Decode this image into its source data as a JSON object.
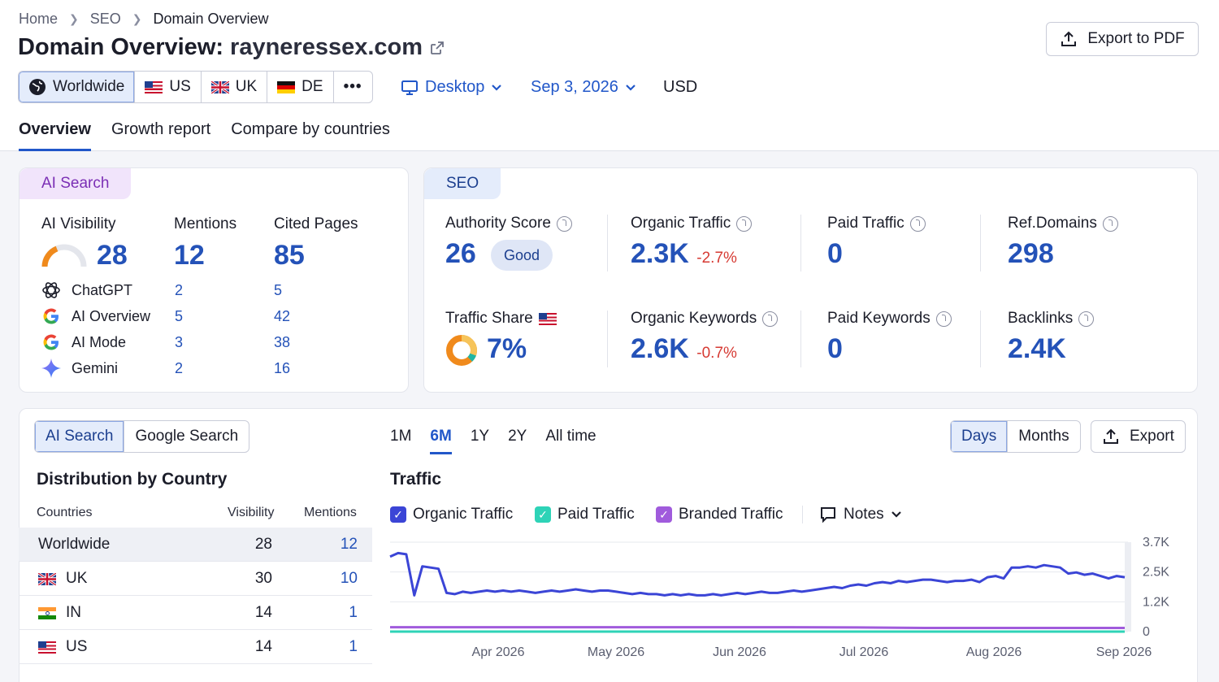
{
  "breadcrumb": {
    "home": "Home",
    "seo": "SEO",
    "current": "Domain Overview"
  },
  "page": {
    "title_prefix": "Domain Overview:",
    "domain": "rayneressex.com",
    "export_pdf": "Export to PDF"
  },
  "regions": [
    {
      "label": "Worldwide",
      "icon": "globe-icon"
    },
    {
      "label": "US",
      "icon": "us-flag-icon"
    },
    {
      "label": "UK",
      "icon": "uk-flag-icon"
    },
    {
      "label": "DE",
      "icon": "de-flag-icon"
    },
    {
      "label": "•••",
      "icon": "more-icon"
    }
  ],
  "filters": {
    "device": "Desktop",
    "date": "Sep 3, 2026",
    "currency": "USD"
  },
  "tabs": [
    "Overview",
    "Growth report",
    "Compare by countries"
  ],
  "ai_search": {
    "label": "AI Search",
    "visibility_label": "AI Visibility",
    "visibility": "28",
    "mentions_label": "Mentions",
    "mentions": "12",
    "cited_label": "Cited Pages",
    "cited": "85",
    "rows": [
      {
        "name": "ChatGPT",
        "mentions": "2",
        "cited": "5",
        "icon": "chatgpt-icon"
      },
      {
        "name": "AI Overview",
        "mentions": "5",
        "cited": "42",
        "icon": "google-icon"
      },
      {
        "name": "AI Mode",
        "mentions": "3",
        "cited": "38",
        "icon": "google-icon"
      },
      {
        "name": "Gemini",
        "mentions": "2",
        "cited": "16",
        "icon": "gemini-icon"
      }
    ]
  },
  "seo": {
    "label": "SEO",
    "authority_label": "Authority Score",
    "authority": "26",
    "authority_badge": "Good",
    "organic_traffic_label": "Organic Traffic",
    "organic_traffic": "2.3K",
    "organic_traffic_change": "-2.7%",
    "paid_traffic_label": "Paid Traffic",
    "paid_traffic": "0",
    "ref_domains_label": "Ref.Domains",
    "ref_domains": "298",
    "traffic_share_label": "Traffic Share",
    "traffic_share": "7%",
    "organic_kw_label": "Organic Keywords",
    "organic_kw": "2.6K",
    "organic_kw_change": "-0.7%",
    "paid_kw_label": "Paid Keywords",
    "paid_kw": "0",
    "backlinks_label": "Backlinks",
    "backlinks": "2.4K"
  },
  "bottom": {
    "source_tabs": [
      "AI Search",
      "Google Search"
    ],
    "ranges": [
      "1M",
      "6M",
      "1Y",
      "2Y",
      "All time"
    ],
    "granularity": [
      "Days",
      "Months"
    ],
    "export": "Export",
    "dist_title": "Distribution by Country",
    "col_countries": "Countries",
    "col_visibility": "Visibility",
    "col_mentions": "Mentions",
    "countries": [
      {
        "name": "Worldwide",
        "visibility": "28",
        "mentions": "12"
      },
      {
        "name": "UK",
        "visibility": "30",
        "mentions": "10"
      },
      {
        "name": "IN",
        "visibility": "14",
        "mentions": "1"
      },
      {
        "name": "US",
        "visibility": "14",
        "mentions": "1"
      }
    ],
    "traffic_title": "Traffic",
    "legend": {
      "organic": "Organic Traffic",
      "paid": "Paid Traffic",
      "branded": "Branded Traffic",
      "notes": "Notes"
    }
  },
  "colors": {
    "accent": "#2157c9",
    "organic": "#3b45d6",
    "paid": "#2ed3b7",
    "branded": "#a05bdc",
    "negative": "#d63a33"
  },
  "chart_data": {
    "type": "line",
    "title": "Traffic",
    "x_ticks": [
      "Apr 2026",
      "May 2026",
      "Jun 2026",
      "Jul 2026",
      "Aug 2026",
      "Sep 2026"
    ],
    "y_ticks": [
      "3.7K",
      "2.5K",
      "1.2K",
      "0"
    ],
    "ylim": [
      0,
      3700
    ],
    "series": [
      {
        "name": "Organic Traffic",
        "values": [
          3100,
          3250,
          3200,
          1500,
          2700,
          2650,
          2600,
          1600,
          1550,
          1650,
          1600,
          1650,
          1700,
          1650,
          1700,
          1650,
          1700,
          1650,
          1600,
          1650,
          1700,
          1650,
          1700,
          1750,
          1700,
          1650,
          1700,
          1700,
          1650,
          1600,
          1550,
          1600,
          1550,
          1550,
          1500,
          1550,
          1500,
          1550,
          1500,
          1500,
          1550,
          1500,
          1550,
          1600,
          1550,
          1600,
          1650,
          1600,
          1600,
          1650,
          1700,
          1650,
          1700,
          1750,
          1800,
          1850,
          1800,
          1900,
          1950,
          1900,
          2000,
          2050,
          2000,
          2100,
          2050,
          2100,
          2150,
          2150,
          2100,
          2050,
          2100,
          2100,
          2150,
          2050,
          2250,
          2300,
          2200,
          2650,
          2650,
          2700,
          2650,
          2750,
          2700,
          2650,
          2400,
          2450,
          2350,
          2400,
          2300,
          2200,
          2300,
          2250
        ]
      },
      {
        "name": "Paid Traffic",
        "values": [
          0,
          0,
          0,
          0,
          0,
          0,
          0,
          0,
          0,
          0,
          0,
          0
        ]
      },
      {
        "name": "Branded Traffic",
        "values": [
          180,
          180,
          180,
          180,
          180,
          180,
          180,
          170,
          150,
          150,
          150,
          150
        ]
      }
    ]
  }
}
